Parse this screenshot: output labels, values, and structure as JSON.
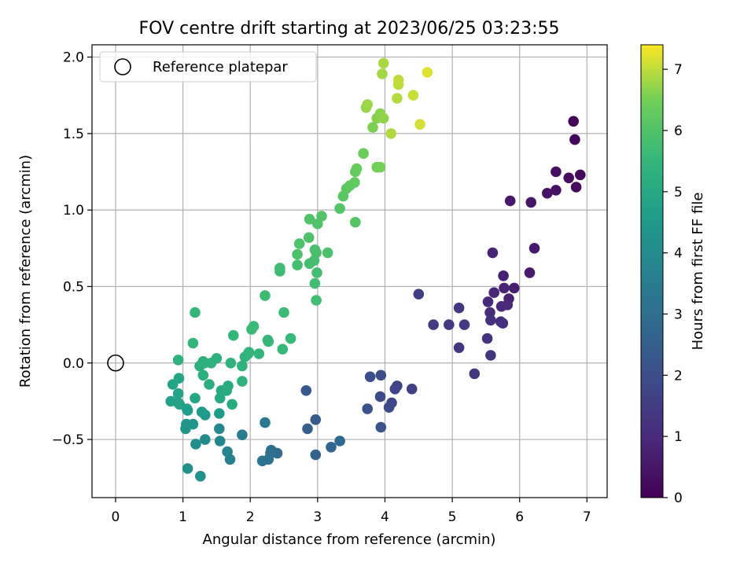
{
  "chart_data": {
    "type": "scatter",
    "title": "FOV centre drift starting at 2023/06/25 03:23:55",
    "xlabel": "Angular distance from reference (arcmin)",
    "ylabel": "Rotation from reference (arcmin)",
    "xlim": [
      -0.35,
      7.3
    ],
    "ylim": [
      -0.88,
      2.08
    ],
    "xticks": [
      0,
      1,
      2,
      3,
      4,
      5,
      6,
      7
    ],
    "yticks": [
      -0.5,
      0.0,
      0.5,
      1.0,
      1.5,
      2.0
    ],
    "xtick_labels": [
      "0",
      "1",
      "2",
      "3",
      "4",
      "5",
      "6",
      "7"
    ],
    "ytick_labels": [
      "−0.5",
      "0.0",
      "0.5",
      "1.0",
      "1.5",
      "2.0"
    ],
    "grid": true,
    "legend": {
      "placement": "top-left",
      "entries": [
        "Reference platepar"
      ]
    },
    "reference": {
      "name": "Reference platepar",
      "x": 0.0,
      "y": 0.0,
      "marker": "open-circle"
    },
    "colorbar": {
      "label": "Hours from first FF file",
      "colormap": "viridis",
      "range": [
        0,
        7.4
      ],
      "ticks": [
        0,
        1,
        2,
        3,
        4,
        5,
        6,
        7
      ],
      "tick_labels": [
        "0",
        "1",
        "2",
        "3",
        "4",
        "5",
        "6",
        "7"
      ]
    },
    "points": [
      [
        6.8,
        1.58,
        0.05
      ],
      [
        6.82,
        1.46,
        0.1
      ],
      [
        6.9,
        1.23,
        0.18
      ],
      [
        6.84,
        1.15,
        0.22
      ],
      [
        6.73,
        1.21,
        0.28
      ],
      [
        6.54,
        1.25,
        0.32
      ],
      [
        6.54,
        1.13,
        0.38
      ],
      [
        6.41,
        1.11,
        0.42
      ],
      [
        6.17,
        1.05,
        0.5
      ],
      [
        5.86,
        1.06,
        0.55
      ],
      [
        6.22,
        0.75,
        0.6
      ],
      [
        6.15,
        0.59,
        0.65
      ],
      [
        5.92,
        0.49,
        0.7
      ],
      [
        5.84,
        0.42,
        0.74
      ],
      [
        5.76,
        0.57,
        0.78
      ],
      [
        5.6,
        0.72,
        0.82
      ],
      [
        5.77,
        0.49,
        0.86
      ],
      [
        5.62,
        0.46,
        0.9
      ],
      [
        5.82,
        0.38,
        0.94
      ],
      [
        5.73,
        0.37,
        0.98
      ],
      [
        5.53,
        0.4,
        1.02
      ],
      [
        5.56,
        0.33,
        1.06
      ],
      [
        5.72,
        0.27,
        1.1
      ],
      [
        5.57,
        0.28,
        1.14
      ],
      [
        5.75,
        0.26,
        1.18
      ],
      [
        5.52,
        0.16,
        1.22
      ],
      [
        5.57,
        0.05,
        1.26
      ],
      [
        5.33,
        -0.07,
        1.3
      ],
      [
        5.1,
        0.1,
        1.34
      ],
      [
        5.1,
        0.36,
        1.38
      ],
      [
        5.18,
        0.25,
        1.42
      ],
      [
        4.95,
        0.25,
        1.46
      ],
      [
        4.72,
        0.25,
        1.5
      ],
      [
        4.5,
        0.45,
        1.56
      ],
      [
        4.4,
        -0.17,
        1.62
      ],
      [
        4.18,
        -0.15,
        1.68
      ],
      [
        4.15,
        -0.17,
        1.74
      ],
      [
        4.1,
        -0.26,
        1.8
      ],
      [
        4.06,
        -0.29,
        1.86
      ],
      [
        3.93,
        -0.22,
        1.92
      ],
      [
        3.94,
        -0.08,
        1.98
      ],
      [
        3.78,
        -0.09,
        2.04
      ],
      [
        3.74,
        -0.3,
        2.1
      ],
      [
        3.94,
        -0.42,
        2.16
      ],
      [
        2.83,
        -0.18,
        2.3
      ],
      [
        2.97,
        -0.37,
        2.4
      ],
      [
        2.85,
        -0.43,
        2.5
      ],
      [
        2.97,
        -0.6,
        2.6
      ],
      [
        3.2,
        -0.55,
        2.7
      ],
      [
        3.33,
        -0.51,
        2.78
      ],
      [
        2.4,
        -0.59,
        2.9
      ],
      [
        2.31,
        -0.57,
        3.0
      ],
      [
        2.3,
        -0.59,
        3.06
      ],
      [
        2.27,
        -0.63,
        3.12
      ],
      [
        2.18,
        -0.64,
        3.2
      ],
      [
        2.22,
        -0.39,
        3.3
      ],
      [
        1.88,
        -0.47,
        3.5
      ],
      [
        1.7,
        -0.63,
        3.6
      ],
      [
        1.66,
        -0.58,
        3.7
      ],
      [
        1.55,
        -0.51,
        3.8
      ],
      [
        1.54,
        -0.43,
        3.9
      ],
      [
        1.33,
        -0.5,
        4.0
      ],
      [
        1.19,
        -0.53,
        4.1
      ],
      [
        1.26,
        -0.74,
        4.2
      ],
      [
        1.07,
        -0.69,
        4.24
      ],
      [
        1.15,
        -0.4,
        4.3
      ],
      [
        1.05,
        -0.4,
        4.36
      ],
      [
        1.04,
        -0.43,
        4.4
      ],
      [
        1.33,
        -0.34,
        4.46
      ],
      [
        1.28,
        -0.32,
        4.5
      ],
      [
        1.54,
        -0.33,
        4.56
      ],
      [
        1.07,
        -0.31,
        4.6
      ],
      [
        1.06,
        -0.3,
        4.64
      ],
      [
        0.93,
        -0.26,
        4.7
      ],
      [
        0.82,
        -0.25,
        4.74
      ],
      [
        0.95,
        -0.27,
        4.78
      ],
      [
        0.93,
        -0.2,
        4.82
      ],
      [
        0.85,
        -0.14,
        4.86
      ],
      [
        0.94,
        -0.1,
        4.9
      ],
      [
        1.18,
        -0.23,
        4.94
      ],
      [
        1.55,
        -0.23,
        4.98
      ],
      [
        1.57,
        -0.18,
        5.02
      ],
      [
        1.73,
        -0.27,
        5.06
      ],
      [
        1.65,
        -0.18,
        5.1
      ],
      [
        1.67,
        -0.15,
        5.14
      ],
      [
        1.39,
        -0.14,
        5.18
      ],
      [
        1.3,
        -0.08,
        5.2
      ],
      [
        1.25,
        -0.02,
        5.22
      ],
      [
        1.32,
        0.0,
        5.24
      ],
      [
        1.3,
        0.01,
        5.26
      ],
      [
        1.42,
        0.0,
        5.28
      ],
      [
        1.5,
        0.03,
        5.3
      ],
      [
        0.93,
        0.02,
        5.32
      ],
      [
        1.71,
        0.0,
        5.34
      ],
      [
        1.88,
        -0.02,
        5.36
      ],
      [
        1.88,
        -0.12,
        5.38
      ],
      [
        1.92,
        0.04,
        5.4
      ],
      [
        1.97,
        0.06,
        5.42
      ],
      [
        1.98,
        0.07,
        5.44
      ],
      [
        2.13,
        0.06,
        5.46
      ],
      [
        1.15,
        0.13,
        5.48
      ],
      [
        1.75,
        0.18,
        5.5
      ],
      [
        1.18,
        0.33,
        5.52
      ],
      [
        2.27,
        0.14,
        5.54
      ],
      [
        2.26,
        0.15,
        5.56
      ],
      [
        2.6,
        0.16,
        5.58
      ],
      [
        2.48,
        0.09,
        5.6
      ],
      [
        2.02,
        0.22,
        5.62
      ],
      [
        2.05,
        0.24,
        5.64
      ],
      [
        2.5,
        0.33,
        5.66
      ],
      [
        2.22,
        0.44,
        5.68
      ],
      [
        2.44,
        0.6,
        5.7
      ],
      [
        2.44,
        0.62,
        5.72
      ],
      [
        2.98,
        0.41,
        5.74
      ],
      [
        2.96,
        0.52,
        5.76
      ],
      [
        2.99,
        0.59,
        5.78
      ],
      [
        2.7,
        0.64,
        5.8
      ],
      [
        2.88,
        0.65,
        5.82
      ],
      [
        2.95,
        0.67,
        5.84
      ],
      [
        2.98,
        0.72,
        5.86
      ],
      [
        2.96,
        0.74,
        5.88
      ],
      [
        3.15,
        0.72,
        5.9
      ],
      [
        2.7,
        0.71,
        5.92
      ],
      [
        2.73,
        0.78,
        5.94
      ],
      [
        2.87,
        0.82,
        5.96
      ],
      [
        2.88,
        0.94,
        5.98
      ],
      [
        3.0,
        0.91,
        6.0
      ],
      [
        3.06,
        0.96,
        6.02
      ],
      [
        3.33,
        1.01,
        6.06
      ],
      [
        3.56,
        0.92,
        6.1
      ],
      [
        3.38,
        1.09,
        6.14
      ],
      [
        3.43,
        1.14,
        6.18
      ],
      [
        3.48,
        1.16,
        6.22
      ],
      [
        3.55,
        1.18,
        6.26
      ],
      [
        3.56,
        1.25,
        6.3
      ],
      [
        3.58,
        1.27,
        6.34
      ],
      [
        3.68,
        1.37,
        6.4
      ],
      [
        3.88,
        1.28,
        6.46
      ],
      [
        3.93,
        1.28,
        6.5
      ],
      [
        3.82,
        1.54,
        6.56
      ],
      [
        3.88,
        1.6,
        6.62
      ],
      [
        3.93,
        1.63,
        6.66
      ],
      [
        3.98,
        1.6,
        6.7
      ],
      [
        3.72,
        1.67,
        6.74
      ],
      [
        3.74,
        1.69,
        6.78
      ],
      [
        3.96,
        1.89,
        6.82
      ],
      [
        3.98,
        1.96,
        6.86
      ],
      [
        4.09,
        1.5,
        6.9
      ],
      [
        4.18,
        1.73,
        6.94
      ],
      [
        4.2,
        1.82,
        6.98
      ],
      [
        4.2,
        1.85,
        7.02
      ],
      [
        4.42,
        1.75,
        7.06
      ],
      [
        4.52,
        1.56,
        7.12
      ],
      [
        4.63,
        1.9,
        7.2
      ]
    ]
  }
}
